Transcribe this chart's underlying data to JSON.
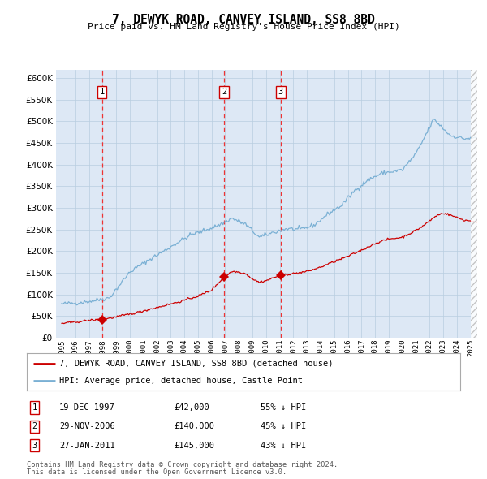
{
  "title": "7, DEWYK ROAD, CANVEY ISLAND, SS8 8BD",
  "subtitle": "Price paid vs. HM Land Registry's House Price Index (HPI)",
  "legend_property": "7, DEWYK ROAD, CANVEY ISLAND, SS8 8BD (detached house)",
  "legend_hpi": "HPI: Average price, detached house, Castle Point",
  "footer1": "Contains HM Land Registry data © Crown copyright and database right 2024.",
  "footer2": "This data is licensed under the Open Government Licence v3.0.",
  "transactions": [
    {
      "num": 1,
      "date": "19-DEC-1997",
      "price": 42000,
      "pct": "55%",
      "year_x": 1997.96
    },
    {
      "num": 2,
      "date": "29-NOV-2006",
      "price": 140000,
      "pct": "45%",
      "year_x": 2006.91
    },
    {
      "num": 3,
      "date": "27-JAN-2011",
      "price": 145000,
      "pct": "43%",
      "year_x": 2011.07
    }
  ],
  "property_color": "#cc0000",
  "hpi_color": "#7ab0d4",
  "vline_color": "#ee3333",
  "plot_bg": "#dde8f5",
  "ylim": [
    0,
    620000
  ],
  "yticks": [
    0,
    50000,
    100000,
    150000,
    200000,
    250000,
    300000,
    350000,
    400000,
    450000,
    500000,
    550000,
    600000
  ],
  "xlim_start": 1994.58,
  "xlim_end": 2025.5,
  "hatch_start": 2025.0
}
